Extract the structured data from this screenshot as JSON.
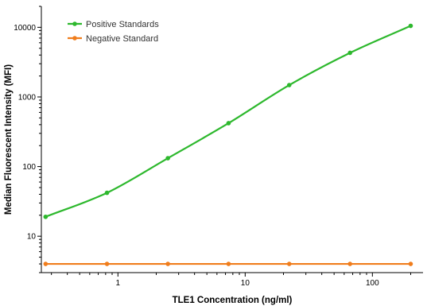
{
  "chart_data": {
    "type": "scatter",
    "xlabel": "TLE1 Concentration (ng/ml)",
    "ylabel": "Median Fluorescent Intensity (MFI)",
    "xscale": "log",
    "yscale": "log",
    "xlim": [
      0.25,
      250
    ],
    "ylim": [
      3,
      20000
    ],
    "x_ticks": [
      1,
      10,
      100
    ],
    "x_tick_labels": [
      "1",
      "10",
      "100"
    ],
    "y_ticks": [
      10,
      100,
      1000,
      10000
    ],
    "y_tick_labels": [
      "10",
      "100",
      "1000",
      "10000"
    ],
    "grid": false,
    "legend_position": "top-left",
    "series": [
      {
        "name": "Positive Standards",
        "color": "#2db82d",
        "fit": "curve",
        "points": [
          {
            "x": 0.27,
            "y": 19
          },
          {
            "x": 0.82,
            "y": 42
          },
          {
            "x": 2.47,
            "y": 132
          },
          {
            "x": 7.4,
            "y": 420
          },
          {
            "x": 22.2,
            "y": 1480
          },
          {
            "x": 66.7,
            "y": 4300
          },
          {
            "x": 200,
            "y": 10500
          }
        ]
      },
      {
        "name": "Negative Standard",
        "color": "#f07d1c",
        "fit": "line",
        "points": [
          {
            "x": 0.27,
            "y": 4
          },
          {
            "x": 0.82,
            "y": 4
          },
          {
            "x": 2.47,
            "y": 4
          },
          {
            "x": 7.4,
            "y": 4
          },
          {
            "x": 22.2,
            "y": 4
          },
          {
            "x": 66.7,
            "y": 4
          },
          {
            "x": 200,
            "y": 4
          }
        ]
      }
    ]
  }
}
